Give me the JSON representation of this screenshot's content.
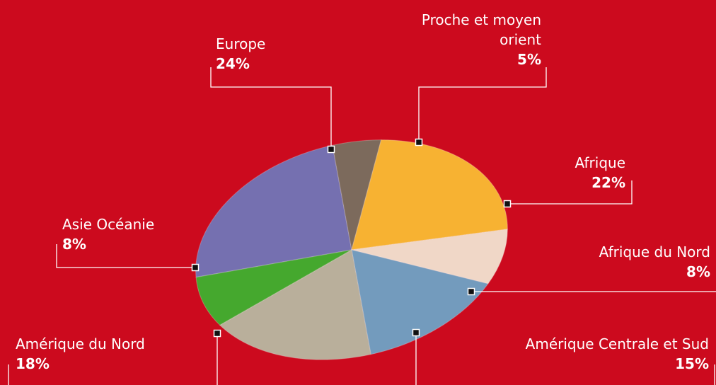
{
  "chart_data": {
    "type": "pie",
    "categories": [
      "Europe",
      "Proche et moyen orient",
      "Afrique",
      "Afrique du Nord",
      "Amérique Centrale et Sud",
      "Amérique du Nord",
      "Asie Océanie"
    ],
    "values": [
      24,
      5,
      22,
      8,
      15,
      18,
      8
    ],
    "value_labels": [
      "24%",
      "5%",
      "22%",
      "8%",
      "15%",
      "18%",
      "8%"
    ],
    "colors": [
      "#7470b0",
      "#7b6b5b",
      "#f7b233",
      "#f0d7c7",
      "#739bbd",
      "#b9af9b",
      "#45a82f"
    ]
  }
}
